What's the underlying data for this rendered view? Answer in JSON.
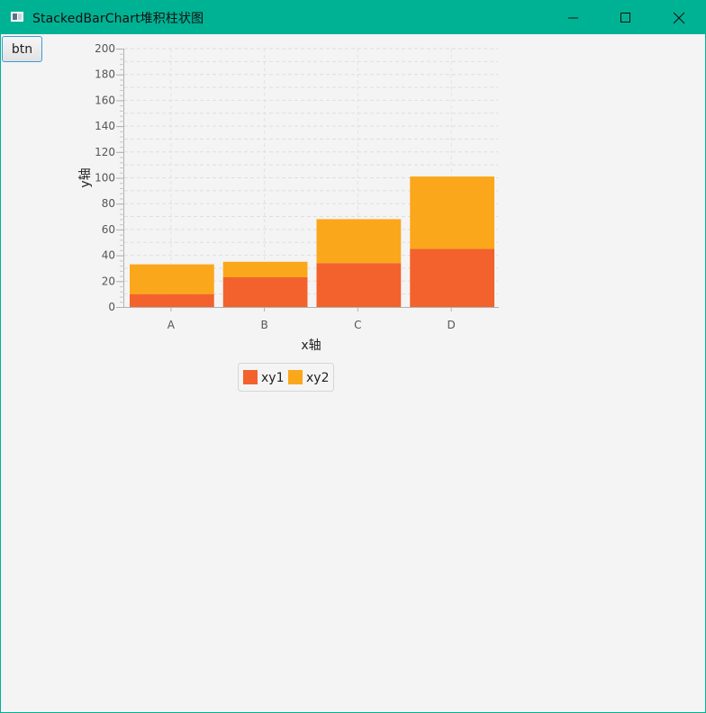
{
  "window": {
    "title": "StackedBarChart堆积柱状图",
    "accent": "#00b294"
  },
  "toolbar": {
    "button_label": "btn"
  },
  "chart_data": {
    "type": "bar",
    "stacked": true,
    "categories": [
      "A",
      "B",
      "C",
      "D"
    ],
    "series": [
      {
        "name": "xy1",
        "color": "#f3622d",
        "values": [
          10,
          23,
          34,
          45
        ]
      },
      {
        "name": "xy2",
        "color": "#fba71b",
        "values": [
          23,
          12,
          34,
          56
        ]
      }
    ],
    "xlabel": "x轴",
    "ylabel": "y轴",
    "ylim": [
      0,
      200
    ],
    "ytick_step": 20,
    "y_ticks": [
      "0",
      "20",
      "40",
      "60",
      "80",
      "100",
      "120",
      "140",
      "160",
      "180",
      "200"
    ],
    "grid": true,
    "legend": "bottom"
  }
}
